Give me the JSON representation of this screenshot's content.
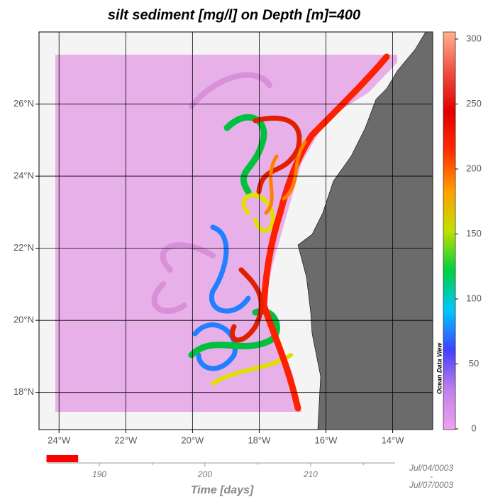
{
  "map": {
    "title": "silt sediment [mg/l] on Depth [m]=400",
    "lonlim": [
      -24.6,
      -12.8
    ],
    "lonticks": [
      {
        "value": -24,
        "label": "24°W"
      },
      {
        "value": -22,
        "label": "22°W"
      },
      {
        "value": -20,
        "label": "20°W"
      },
      {
        "value": -18,
        "label": "18°W"
      },
      {
        "value": -16,
        "label": "16°W"
      },
      {
        "value": -14,
        "label": "14°W"
      }
    ],
    "latlim": [
      16.97,
      28.0
    ],
    "latticks": [
      {
        "value": 18,
        "label": "18°N"
      },
      {
        "value": 20,
        "label": "20°N"
      },
      {
        "value": 22,
        "label": "22°N"
      },
      {
        "value": 24,
        "label": "24°N"
      },
      {
        "value": 26,
        "label": "26°N"
      }
    ],
    "grid": true,
    "colorbar": {
      "lim": [
        0,
        300
      ],
      "ticks": [
        0,
        50,
        100,
        150,
        200,
        250,
        300
      ],
      "colormap": [
        "#f0a0f0",
        "#c080e8",
        "#4040ff",
        "#00c8ff",
        "#00d040",
        "#c0e000",
        "#ffa000",
        "#ff3000",
        "#e00000",
        "#f05040",
        "#ffb090"
      ],
      "label": "Ocean Data View"
    },
    "time": {
      "label": "Time [days]",
      "xlim": [
        185.1,
        218
      ],
      "ticks": [
        190,
        200,
        210
      ],
      "minor_ticks": [
        195,
        205,
        215
      ],
      "range": [
        185,
        188
      ],
      "range_color": "#ff0000",
      "start": "Jul/04/0003",
      "separator": "-",
      "end": "Jul/07/0003"
    }
  }
}
